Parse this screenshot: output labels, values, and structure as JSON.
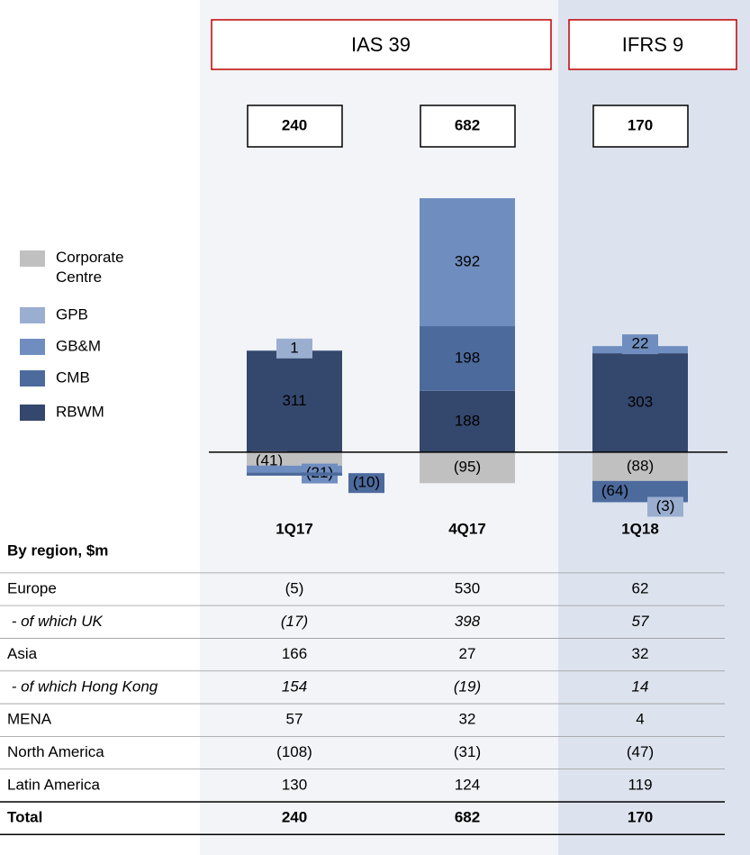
{
  "header_boxes": [
    "IAS 39",
    "IFRS 9"
  ],
  "chart_data": {
    "type": "stacked-bar",
    "categories": [
      "1Q17",
      "4Q17",
      "1Q18"
    ],
    "totals": [
      240,
      682,
      170
    ],
    "ylim": [
      -130,
      800
    ],
    "series": [
      {
        "name": "Corporate Centre",
        "color": "#c0c0c0",
        "values": [
          -41,
          -95,
          -88
        ],
        "value_labels": [
          "(41)",
          "(95)",
          "(88)"
        ]
      },
      {
        "name": "GPB",
        "color": "#9aaed0",
        "values": [
          1,
          null,
          -3
        ],
        "value_labels": [
          "1",
          null,
          "(3)"
        ]
      },
      {
        "name": "GB&M",
        "color": "#6f8ebf",
        "values": [
          -21,
          392,
          22
        ],
        "value_labels": [
          "(21)",
          "392",
          "22"
        ]
      },
      {
        "name": "CMB",
        "color": "#4d6a9c",
        "values": [
          -10,
          198,
          -64
        ],
        "value_labels": [
          "(10)",
          "198",
          "(64)"
        ]
      },
      {
        "name": "RBWM",
        "color": "#34476c",
        "values": [
          311,
          188,
          303
        ],
        "value_labels": [
          "311",
          "188",
          "303"
        ]
      }
    ]
  },
  "table": {
    "header": "By region, $m",
    "rows": [
      {
        "label": "Europe",
        "cells": [
          "(5)",
          "530",
          "62"
        ]
      },
      {
        "label": " - of which UK",
        "cells": [
          "(17)",
          "398",
          "57"
        ],
        "italic": true
      },
      {
        "label": "Asia",
        "cells": [
          "166",
          "27",
          "32"
        ]
      },
      {
        "label": " - of which Hong Kong",
        "cells": [
          "154",
          "(19)",
          "14"
        ],
        "italic": true
      },
      {
        "label": "MENA",
        "cells": [
          "57",
          "32",
          "4"
        ]
      },
      {
        "label": "North America",
        "cells": [
          "(108)",
          "(31)",
          "(47)"
        ]
      },
      {
        "label": "Latin America",
        "cells": [
          "130",
          "124",
          "119"
        ]
      },
      {
        "label": "Total",
        "cells": [
          "240",
          "682",
          "170"
        ],
        "bold": true
      }
    ]
  }
}
